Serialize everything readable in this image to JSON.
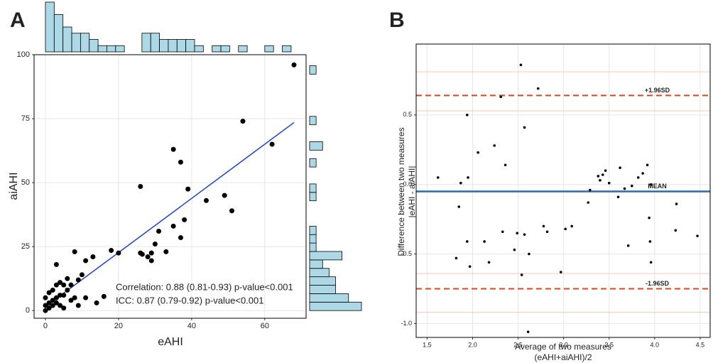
{
  "chart_data": [
    {
      "type": "scatter",
      "panel": "A",
      "x_label": [
        "eAHI"
      ],
      "y_label": [
        "aiAHI"
      ],
      "xlim": [
        -3.1,
        71.3
      ],
      "ylim": [
        -3,
        100
      ],
      "xticks": [
        0,
        20,
        40,
        60
      ],
      "yticks": [
        0,
        25,
        50,
        75,
        100
      ],
      "grid": true,
      "color": "#000000",
      "x": [
        68,
        54,
        62,
        35,
        37,
        26,
        39,
        49,
        44,
        51,
        38,
        35,
        31,
        37,
        30,
        33,
        26,
        26.5,
        29,
        29,
        28,
        20,
        18,
        13,
        11,
        8,
        3,
        10,
        9,
        6,
        7,
        5,
        4,
        3,
        6,
        2,
        4,
        1,
        2,
        3,
        0,
        0,
        0,
        1,
        1,
        2,
        4,
        5,
        7,
        8,
        9,
        11,
        14,
        16,
        5,
        3
      ],
      "values": [
        96,
        74,
        65,
        63,
        58,
        48.5,
        47.5,
        45,
        43,
        39,
        35.5,
        33,
        31,
        28.5,
        26,
        23,
        22.5,
        22,
        22.5,
        19.5,
        21,
        22.5,
        23.5,
        21,
        19.5,
        23,
        18,
        14,
        12,
        12.5,
        10,
        10,
        11,
        10,
        8,
        8,
        6,
        7,
        4,
        3,
        5,
        2,
        0,
        3,
        1,
        2,
        2,
        1,
        4,
        5,
        2,
        5,
        3,
        5.5,
        6,
        5
      ],
      "fit": {
        "x": [
          0,
          68
        ],
        "values": [
          1.5,
          73.5
        ],
        "color": "#1f3fd6"
      },
      "annotations": [
        "Correlation: 0.88 (0.81-0.93) p-value<0.001",
        "ICC: 0.87 (0.79-0.92) p-value<0.001"
      ]
    },
    {
      "type": "histogram",
      "orientation": "vertical",
      "color": "#add8e6",
      "bins": [
        0,
        2.4,
        4.8,
        7.2,
        9.6,
        12,
        14.4,
        16.8,
        19.2,
        21.6,
        24,
        26.4,
        28.8,
        31.2,
        33.6,
        36,
        38.4,
        40.8,
        43.2,
        45.6,
        48,
        50.4,
        52.8,
        55.2,
        57.6,
        60,
        62.4,
        64.8,
        67.2,
        69.6
      ],
      "counts": [
        8,
        6,
        4,
        3,
        3,
        2,
        1,
        1,
        1,
        0,
        0,
        3,
        3,
        2,
        2,
        2,
        2,
        1,
        0,
        1,
        1,
        0,
        1,
        0,
        0,
        1,
        0,
        1,
        0
      ]
    },
    {
      "type": "histogram",
      "orientation": "horizontal",
      "color": "#add8e6",
      "bins": [
        0,
        3.3,
        6.6,
        9.9,
        13.2,
        16.5,
        19.8,
        23.1,
        26.4,
        29.7,
        33,
        36.3,
        39.6,
        42.9,
        46.2,
        49.5,
        52.8,
        56.1,
        59.4,
        62.7,
        66,
        69.3,
        72.6,
        75.9,
        79.2,
        82.5,
        85.8,
        89.1,
        92.4,
        95.7,
        99
      ],
      "counts": [
        8,
        6,
        4,
        4,
        3,
        2,
        5,
        1,
        1,
        1,
        0,
        0,
        0,
        1,
        1,
        0,
        0,
        1,
        0,
        2,
        0,
        0,
        1,
        0,
        0,
        0,
        0,
        0,
        1,
        0
      ]
    },
    {
      "type": "scatter",
      "panel": "B",
      "x_label": [
        "Average of two measures",
        "(eAHI+aiAHI)/2"
      ],
      "y_label": [
        "Difference between two measures",
        "|eAHI - aiAHI|"
      ],
      "xlim": [
        1.38,
        4.61
      ],
      "ylim": [
        -1.1,
        1.01
      ],
      "xticks": [
        1.5,
        {
          "value": 2,
          "label": "2.0"
        },
        2.5,
        {
          "value": 3,
          "label": "3.0"
        },
        3.5,
        {
          "value": 4,
          "label": "4.0"
        },
        4.5
      ],
      "yticks": [
        -0.5,
        {
          "value": -1,
          "label": "-1.0"
        },
        {
          "value": 0,
          "label": "0.0"
        },
        0.5
      ],
      "grid": true,
      "color": "#000000",
      "x": [
        1.62,
        1.87,
        1.94,
        1.95,
        1.85,
        2.06,
        1.82,
        1.94,
        1.97,
        2.13,
        2.18,
        2.24,
        2.33,
        2.36,
        2.31,
        2.53,
        2.57,
        2.72,
        2.46,
        2.49,
        2.57,
        2.62,
        2.54,
        2.61,
        2.78,
        2.82,
        2.97,
        3.02,
        3.09,
        3.29,
        3.27,
        3.38,
        3.4,
        3.43,
        3.46,
        3.5,
        3.62,
        3.6,
        3.67,
        3.71,
        3.75,
        3.82,
        3.87,
        3.94,
        3.95,
        3.96,
        3.92,
        3.96,
        4.24,
        4.23,
        4.47
      ],
      "values": [
        0.05,
        0.01,
        0.5,
        0.05,
        -0.16,
        0.23,
        -0.53,
        -0.41,
        -0.59,
        -0.41,
        -0.56,
        0.28,
        -0.34,
        0.14,
        0.63,
        0.86,
        0.41,
        0.69,
        -0.47,
        -0.35,
        -0.36,
        -0.5,
        -0.65,
        -1.06,
        -0.3,
        -0.34,
        -0.63,
        -0.32,
        -0.3,
        -0.04,
        -0.13,
        0.06,
        0.03,
        0.07,
        0.1,
        0.01,
        0.12,
        -0.09,
        -0.03,
        -0.44,
        -0.01,
        0.05,
        0.08,
        -0.24,
        -0.41,
        -0.56,
        0.14,
        0,
        -0.14,
        -0.33,
        -0.37
      ],
      "hlines": [
        {
          "value": 0.81,
          "color": "#f7c6b5"
        },
        {
          "value": 0.64,
          "label": "+1.96SD",
          "color": "#e8421b",
          "line_style": "dashed"
        },
        {
          "value": 0.53,
          "color": "#f7c6b5"
        },
        {
          "value": -0.05,
          "label": "MEAN",
          "color": "#2a6aa8",
          "line_style": "solid"
        },
        {
          "value": -0.64,
          "color": "#f7c6b5"
        },
        {
          "value": -0.75,
          "label": "-1.96SD",
          "color": "#e8421b",
          "line_style": "dashed"
        },
        {
          "value": -0.92,
          "color": "#f7c6b5"
        }
      ]
    }
  ]
}
